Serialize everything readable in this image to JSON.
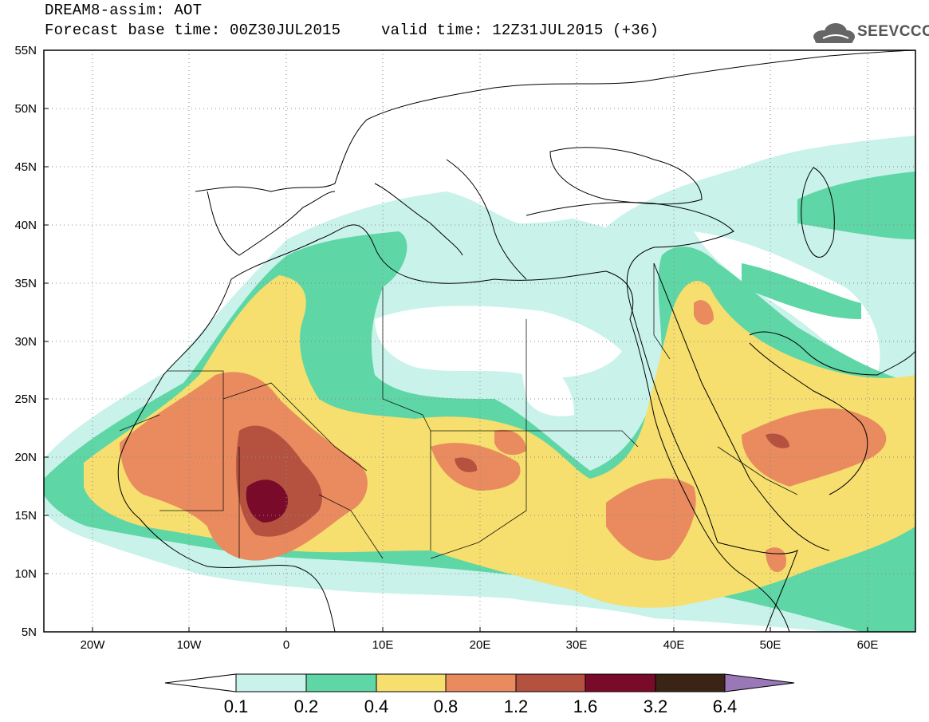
{
  "header": {
    "title": "DREAM8-assim: AOT",
    "base_time": "Forecast base time: 00Z30JUL2015",
    "valid_time": "valid time: 12Z31JUL2015 (+36)"
  },
  "logo": {
    "text": "SEEVCCC",
    "icon": "cloud-icon"
  },
  "map": {
    "lat_range": [
      5,
      55
    ],
    "lon_range": [
      -25,
      65
    ],
    "lat_labels": [
      "55N",
      "50N",
      "45N",
      "40N",
      "35N",
      "30N",
      "25N",
      "20N",
      "15N",
      "10N",
      "5N"
    ],
    "lon_labels": [
      "20W",
      "10W",
      "0",
      "10E",
      "20E",
      "30E",
      "40E",
      "50E",
      "60E"
    ]
  },
  "colorbar": {
    "labels": [
      "0.1",
      "0.2",
      "0.4",
      "0.8",
      "1.2",
      "1.6",
      "3.2",
      "6.4"
    ],
    "colors": [
      "#c8f2ea",
      "#5fd6a5",
      "#f6df6e",
      "#e98b5f",
      "#b5513f",
      "#7a0a2a",
      "#3a2415",
      "#9a78b7"
    ]
  }
}
